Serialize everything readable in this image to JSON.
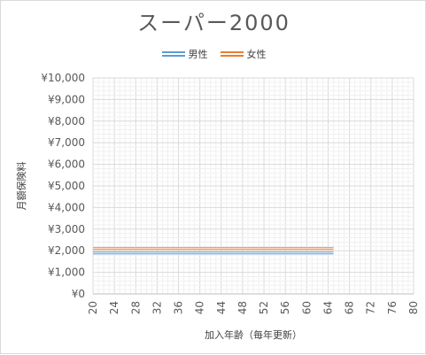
{
  "chart_data": {
    "type": "line",
    "title": "スーパー2000",
    "xlabel": "加入年齢（毎年更新）",
    "ylabel": "月額保険料",
    "x_ticks": [
      20,
      24,
      28,
      32,
      36,
      40,
      44,
      48,
      52,
      56,
      60,
      64,
      68,
      72,
      76,
      80
    ],
    "y_ticks": [
      "¥0",
      "¥1,000",
      "¥2,000",
      "¥3,000",
      "¥4,000",
      "¥5,000",
      "¥6,000",
      "¥7,000",
      "¥8,000",
      "¥9,000",
      "¥10,000"
    ],
    "xlim": [
      20,
      80
    ],
    "ylim": [
      0,
      10000
    ],
    "grid": true,
    "legend_position": "top",
    "series": [
      {
        "name": "男性",
        "color": "#5b9bd5",
        "x": [
          20,
          65
        ],
        "values": [
          2000,
          2000
        ]
      },
      {
        "name": "女性",
        "color": "#ed7d31",
        "x": [
          20,
          65
        ],
        "values": [
          2000,
          2000
        ]
      }
    ]
  }
}
